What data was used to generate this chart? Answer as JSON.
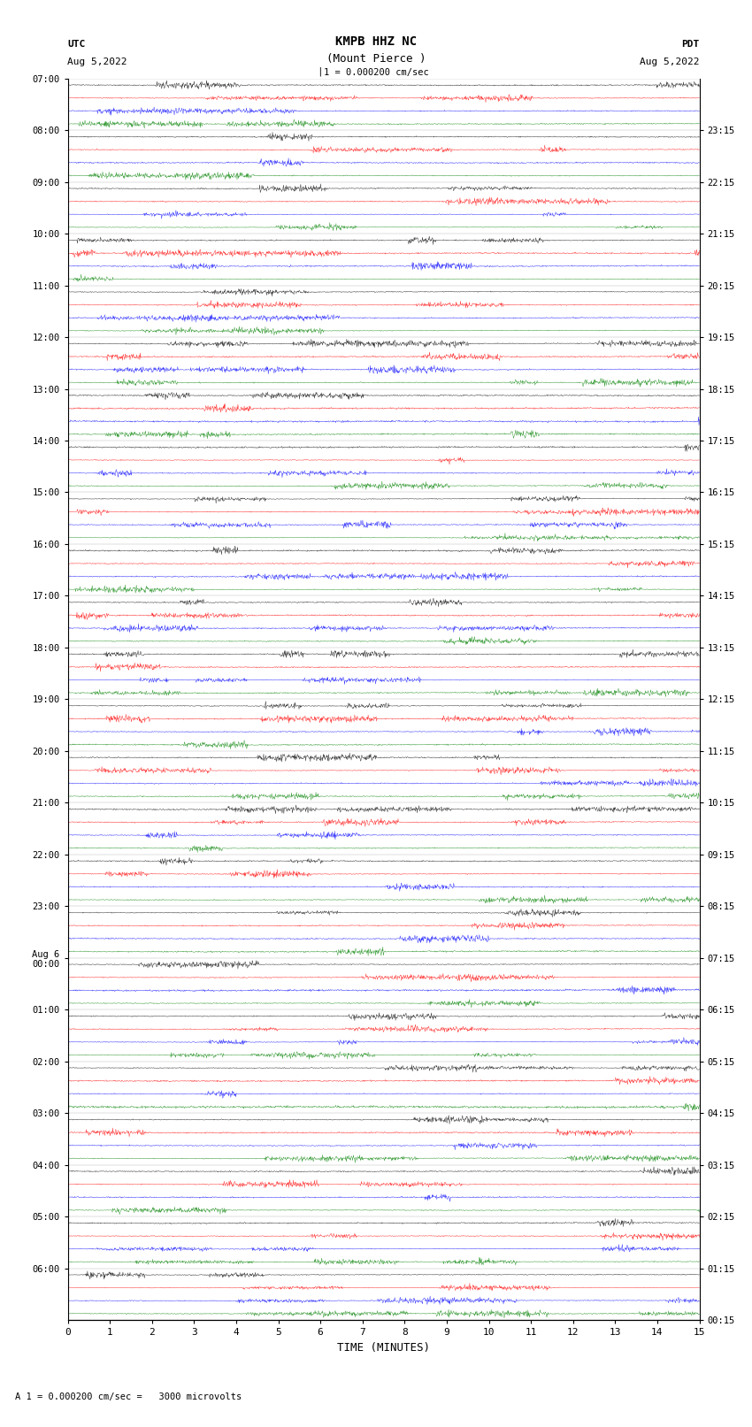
{
  "title_line1": "KMPB HHZ NC",
  "title_line2": "(Mount Pierce )",
  "scale_label": "1 = 0.000200 cm/sec",
  "left_label": "UTC",
  "left_date": "Aug 5,2022",
  "right_label": "PDT",
  "right_date": "Aug 5,2022",
  "bottom_label": "TIME (MINUTES)",
  "bottom_note": "A 1 = 0.000200 cm/sec =   3000 microvolts",
  "utc_times": [
    "07:00",
    "08:00",
    "09:00",
    "10:00",
    "11:00",
    "12:00",
    "13:00",
    "14:00",
    "15:00",
    "16:00",
    "17:00",
    "18:00",
    "19:00",
    "20:00",
    "21:00",
    "22:00",
    "23:00",
    "Aug 6\n00:00",
    "01:00",
    "02:00",
    "03:00",
    "04:00",
    "05:00",
    "06:00"
  ],
  "pdt_times": [
    "00:15",
    "01:15",
    "02:15",
    "03:15",
    "04:15",
    "05:15",
    "06:15",
    "07:15",
    "08:15",
    "09:15",
    "10:15",
    "11:15",
    "12:15",
    "13:15",
    "14:15",
    "15:15",
    "16:15",
    "17:15",
    "18:15",
    "19:15",
    "20:15",
    "21:15",
    "22:15",
    "23:15"
  ],
  "num_rows": 24,
  "traces_per_row": 4,
  "minutes_per_row": 15,
  "colors": [
    "black",
    "red",
    "blue",
    "green"
  ],
  "bg_color": "white",
  "fig_width": 8.5,
  "fig_height": 16.13,
  "dpi": 100,
  "x_ticks": [
    0,
    1,
    2,
    3,
    4,
    5,
    6,
    7,
    8,
    9,
    10,
    11,
    12,
    13,
    14,
    15
  ],
  "amplitude_scale": 0.35
}
